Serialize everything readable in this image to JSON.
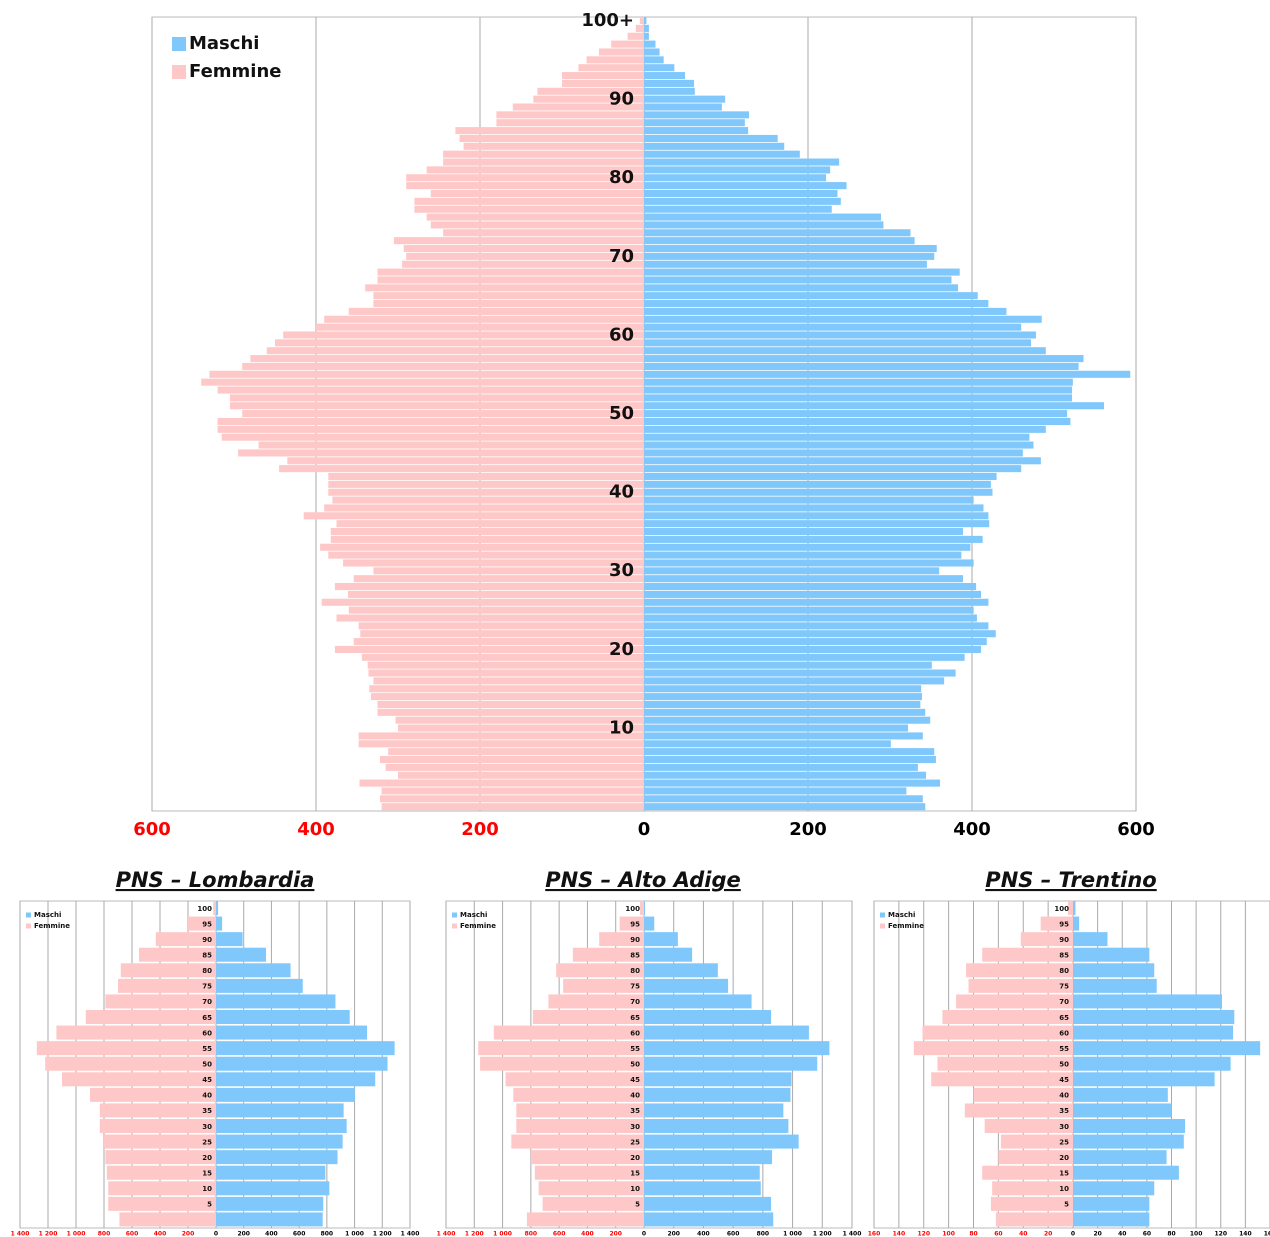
{
  "chart_data": [
    {
      "type": "pyramid",
      "categories": [
        null,
        null,
        null,
        null,
        null,
        null,
        null,
        null,
        null,
        null,
        "10",
        null,
        null,
        null,
        null,
        null,
        null,
        null,
        null,
        null,
        "20",
        null,
        null,
        null,
        null,
        null,
        null,
        null,
        null,
        null,
        "30",
        null,
        null,
        null,
        null,
        null,
        null,
        null,
        null,
        null,
        "40",
        null,
        null,
        null,
        null,
        null,
        null,
        null,
        null,
        null,
        "50",
        null,
        null,
        null,
        null,
        null,
        null,
        null,
        null,
        null,
        "60",
        null,
        null,
        null,
        null,
        null,
        null,
        null,
        null,
        null,
        "70",
        null,
        null,
        null,
        null,
        null,
        null,
        null,
        null,
        null,
        "80",
        null,
        null,
        null,
        null,
        null,
        null,
        null,
        null,
        null,
        "90",
        null,
        null,
        null,
        null,
        null,
        null,
        null,
        null,
        null,
        "100+"
      ],
      "series": [
        {
          "name": "Maschi",
          "color": "#80c8fc",
          "values": [
            343,
            340,
            320,
            361,
            344,
            334,
            356,
            354,
            301,
            340,
            322,
            349,
            343,
            337,
            339,
            338,
            366,
            380,
            351,
            391,
            411,
            418,
            429,
            420,
            406,
            402,
            420,
            411,
            405,
            389,
            360,
            402,
            387,
            398,
            413,
            389,
            421,
            420,
            414,
            402,
            425,
            423,
            430,
            460,
            484,
            462,
            475,
            470,
            490,
            520,
            516,
            561,
            522,
            522,
            523,
            593,
            530,
            536,
            490,
            472,
            478,
            460,
            485,
            442,
            420,
            407,
            383,
            375,
            385,
            345,
            354,
            357,
            330,
            325,
            292,
            289,
            229,
            240,
            236,
            247,
            222,
            227,
            238,
            190,
            171,
            163,
            127,
            123,
            128,
            95,
            99,
            62,
            61,
            50,
            37,
            24,
            19,
            14,
            6,
            6,
            3
          ]
        },
        {
          "name": "Femmine",
          "color": "#ffc8c8",
          "values": [
            320,
            322,
            320,
            347,
            300,
            315,
            322,
            312,
            348,
            348,
            300,
            303,
            325,
            325,
            333,
            335,
            330,
            336,
            337,
            344,
            377,
            354,
            346,
            348,
            375,
            360,
            393,
            361,
            377,
            354,
            330,
            367,
            385,
            395,
            382,
            382,
            375,
            415,
            390,
            380,
            385,
            385,
            385,
            445,
            435,
            495,
            470,
            515,
            520,
            520,
            490,
            505,
            505,
            520,
            540,
            530,
            490,
            480,
            460,
            450,
            440,
            400,
            390,
            360,
            330,
            330,
            340,
            325,
            325,
            295,
            290,
            293,
            305,
            245,
            260,
            265,
            280,
            280,
            260,
            290,
            290,
            265,
            245,
            245,
            220,
            225,
            230,
            180,
            180,
            160,
            135,
            130,
            100,
            100,
            80,
            70,
            55,
            40,
            20,
            10,
            5
          ]
        }
      ],
      "xlim": [
        -600,
        600
      ],
      "xticks": [
        {
          "value": -600,
          "label": "600"
        },
        {
          "value": -400,
          "label": "400"
        },
        {
          "value": -200,
          "label": "200"
        },
        0,
        200,
        400,
        600
      ],
      "negative_tick_color": "#ff0000",
      "grid": true
    },
    {
      "type": "pyramid",
      "title": "PNS – Lombardia",
      "categories": [
        null,
        "5",
        "10",
        "15",
        "20",
        "25",
        "30",
        "35",
        "40",
        "45",
        "50",
        "55",
        "60",
        "65",
        "70",
        "75",
        "80",
        "85",
        "90",
        "95",
        "100"
      ],
      "series": [
        {
          "name": "Maschi",
          "color": "#80c8fc",
          "values": [
            770,
            774,
            818,
            789,
            877,
            914,
            943,
            921,
            1002,
            1149,
            1238,
            1289,
            1090,
            965,
            862,
            626,
            538,
            361,
            192,
            44,
            15
          ]
        },
        {
          "name": "Femmine",
          "color": "#ffc8c8",
          "values": [
            690,
            770,
            770,
            780,
            790,
            800,
            830,
            830,
            900,
            1100,
            1220,
            1280,
            1140,
            930,
            790,
            700,
            680,
            550,
            430,
            200,
            20
          ]
        }
      ],
      "xlim": [
        -1400,
        1400
      ],
      "xticks": [
        {
          "value": -1400,
          "label": "1 400"
        },
        {
          "value": -1200,
          "label": "1 200"
        },
        {
          "value": -1000,
          "label": "1 000"
        },
        {
          "value": -800,
          "label": "800"
        },
        {
          "value": -600,
          "label": "600"
        },
        {
          "value": -400,
          "label": "400"
        },
        {
          "value": -200,
          "label": "200"
        },
        0,
        200,
        400,
        600,
        800,
        {
          "value": 1000,
          "label": "1 000"
        },
        {
          "value": 1200,
          "label": "1 200"
        },
        {
          "value": 1400,
          "label": "1 400"
        }
      ],
      "negative_tick_color": "#ff0000",
      "grid": true
    },
    {
      "type": "pyramid",
      "title": "PNS – Alto Adige",
      "categories": [
        null,
        "5",
        "10",
        "15",
        "20",
        "25",
        "30",
        "35",
        "40",
        "45",
        "50",
        "55",
        "60",
        "65",
        "70",
        "75",
        "80",
        "85",
        "90",
        "95",
        "100"
      ],
      "series": [
        {
          "name": "Maschi",
          "color": "#80c8fc",
          "values": [
            870,
            855,
            786,
            779,
            862,
            1041,
            972,
            938,
            986,
            993,
            1166,
            1248,
            1110,
            855,
            724,
            566,
            497,
            324,
            228,
            69,
            7
          ]
        },
        {
          "name": "Femmine",
          "color": "#ffc8c8",
          "values": [
            828,
            717,
            745,
            772,
            800,
            938,
            903,
            903,
            924,
            979,
            1159,
            1172,
            1062,
            786,
            676,
            572,
            621,
            503,
            317,
            172,
            28
          ]
        }
      ],
      "xlim": [
        -1400,
        1400
      ],
      "xticks": [
        {
          "value": -1400,
          "label": "1 400"
        },
        {
          "value": -1200,
          "label": "1 200"
        },
        {
          "value": -1000,
          "label": "1 000"
        },
        {
          "value": -800,
          "label": "800"
        },
        {
          "value": -600,
          "label": "600"
        },
        {
          "value": -400,
          "label": "400"
        },
        {
          "value": -200,
          "label": "200"
        },
        0,
        200,
        400,
        600,
        800,
        {
          "value": 1000,
          "label": "1 000"
        },
        {
          "value": 1200,
          "label": "1 200"
        },
        {
          "value": 1400,
          "label": "1 400"
        }
      ],
      "negative_tick_color": "#ff0000",
      "grid": true
    },
    {
      "type": "pyramid",
      "title": "PNS – Trentino",
      "categories": [
        null,
        "5",
        "10",
        "15",
        "20",
        "25",
        "30",
        "35",
        "40",
        "45",
        "50",
        "55",
        "60",
        "65",
        "70",
        "75",
        "80",
        "85",
        "90",
        "95",
        "100"
      ],
      "series": [
        {
          "name": "Maschi",
          "color": "#80c8fc",
          "values": [
            62,
            62,
            66,
            86,
            76,
            90,
            91,
            80,
            77,
            115,
            128,
            152,
            130,
            131,
            121,
            68,
            66,
            62,
            28,
            5,
            2
          ]
        },
        {
          "name": "Femmine",
          "color": "#ffc8c8",
          "values": [
            62,
            66,
            65,
            73,
            60,
            58,
            71,
            87,
            80,
            114,
            109,
            128,
            121,
            105,
            94,
            84,
            86,
            73,
            42,
            26,
            4
          ]
        }
      ],
      "xlim": [
        -160,
        160
      ],
      "xticks": [
        {
          "value": -160,
          "label": "160"
        },
        {
          "value": -140,
          "label": "140"
        },
        {
          "value": -120,
          "label": "120"
        },
        {
          "value": -100,
          "label": "100"
        },
        {
          "value": -80,
          "label": "80"
        },
        {
          "value": -60,
          "label": "60"
        },
        {
          "value": -40,
          "label": "40"
        },
        {
          "value": -20,
          "label": "20"
        },
        0,
        20,
        40,
        60,
        80,
        100,
        120,
        140,
        160
      ],
      "negative_tick_color": "#ff0000",
      "grid": true
    }
  ]
}
